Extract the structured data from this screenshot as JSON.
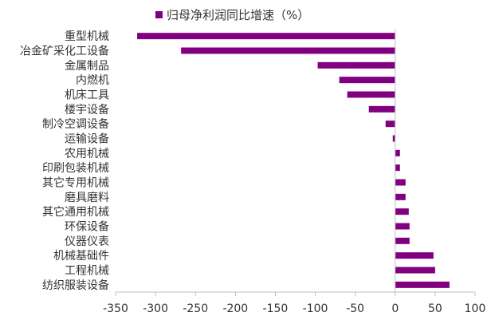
{
  "colors": {
    "bar": "#800080",
    "axis": "#bfbfbf",
    "text": "#333333"
  },
  "chart_data": {
    "type": "bar",
    "orientation": "horizontal",
    "legend": {
      "position": "top",
      "label": "归母净利润同比增速（%）"
    },
    "categories": [
      "重型机械",
      "冶金矿采化工设备",
      "金属制品",
      "内燃机",
      "机床工具",
      "楼宇设备",
      "制冷空调设备",
      "运输设备",
      "农用机械",
      "印刷包装机械",
      "其它专用机械",
      "磨具磨料",
      "其它通用机械",
      "环保设备",
      "仪器仪表",
      "机械基础件",
      "工程机械",
      "纺织服装设备"
    ],
    "series": [
      {
        "name": "归母净利润同比增速（%）",
        "values": [
          -323,
          -268,
          -97,
          -70,
          -60,
          -33,
          -12,
          -3,
          6,
          6,
          13,
          13,
          17,
          18,
          18,
          48,
          50,
          68
        ]
      }
    ],
    "xlim": [
      -350,
      100
    ],
    "xticks": [
      -350,
      -300,
      -250,
      -200,
      -150,
      -100,
      -50,
      0,
      50,
      100
    ],
    "grid": false
  }
}
